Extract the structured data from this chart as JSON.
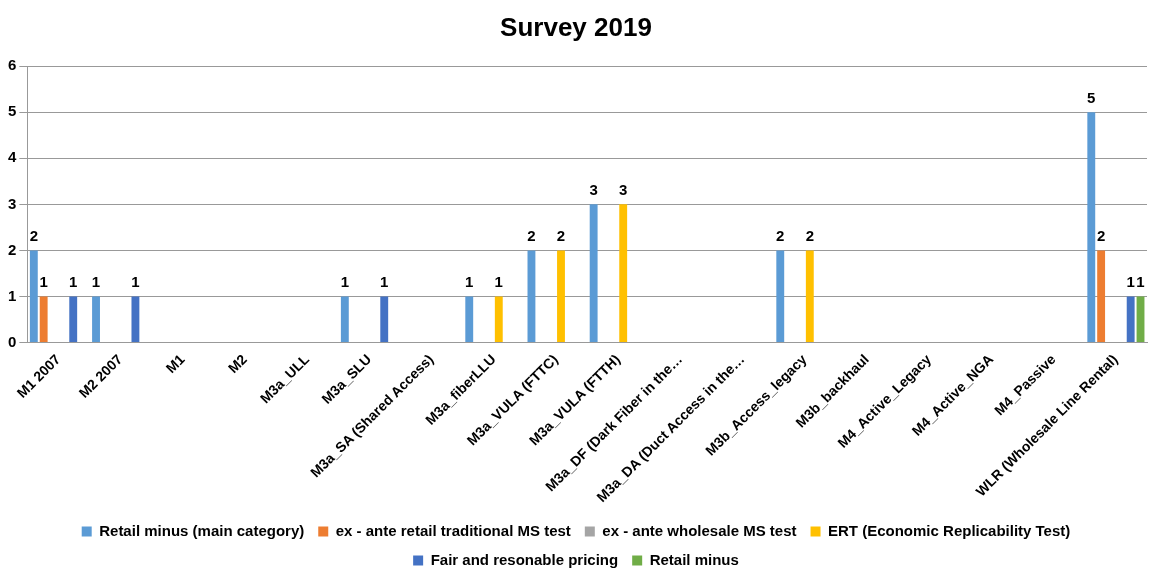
{
  "chart_data": {
    "type": "bar",
    "title": "Survey 2019",
    "categories": [
      "M1 2007",
      "M2 2007",
      "M1",
      "M2",
      "M3a_ULL",
      "M3a_SLU",
      "M3a_SA (Shared Access)",
      "M3a_fiberLLU",
      "M3a_VULA (FTTC)",
      "M3a_VULA (FTTH)",
      "M3a_DF (Dark Fiber in the…",
      "M3a_DA (Duct Access in the…",
      "M3b_Access_legacy",
      "M3b_backhaul",
      "M4_Active_Legacy",
      "M4_Active_NGA",
      "M4_Passive",
      "WLR (Wholesale Line Rental)"
    ],
    "series": [
      {
        "name": "Retail minus (main category)",
        "color": "#5b9bd5",
        "values": [
          2,
          1,
          null,
          null,
          null,
          1,
          null,
          1,
          2,
          3,
          null,
          null,
          2,
          null,
          null,
          null,
          null,
          5
        ]
      },
      {
        "name": "ex - ante retail traditional MS test",
        "color": "#ed7d31",
        "values": [
          1,
          null,
          null,
          null,
          null,
          null,
          null,
          null,
          null,
          null,
          null,
          null,
          null,
          null,
          null,
          null,
          null,
          2
        ]
      },
      {
        "name": "ex - ante wholesale MS test",
        "color": "#a5a5a5",
        "values": [
          null,
          null,
          null,
          null,
          null,
          null,
          null,
          null,
          null,
          null,
          null,
          null,
          null,
          null,
          null,
          null,
          null,
          null
        ]
      },
      {
        "name": "ERT (Economic Replicability Test)",
        "color": "#ffc000",
        "values": [
          null,
          null,
          null,
          null,
          null,
          null,
          null,
          1,
          2,
          3,
          null,
          null,
          2,
          null,
          null,
          null,
          null,
          null
        ]
      },
      {
        "name": "Fair and resonable pricing",
        "color": "#4472c4",
        "values": [
          1,
          1,
          null,
          null,
          null,
          1,
          null,
          null,
          null,
          null,
          null,
          null,
          null,
          null,
          null,
          null,
          null,
          1
        ]
      },
      {
        "name": "Retail minus",
        "color": "#70ad47",
        "values": [
          null,
          null,
          null,
          null,
          null,
          null,
          null,
          null,
          null,
          null,
          null,
          null,
          null,
          null,
          null,
          null,
          null,
          1
        ]
      }
    ],
    "ylim": [
      0,
      6
    ],
    "yticks": [
      0,
      1,
      2,
      3,
      4,
      5,
      6
    ],
    "grid": "y",
    "legend": "bottom",
    "data_labels": true
  }
}
